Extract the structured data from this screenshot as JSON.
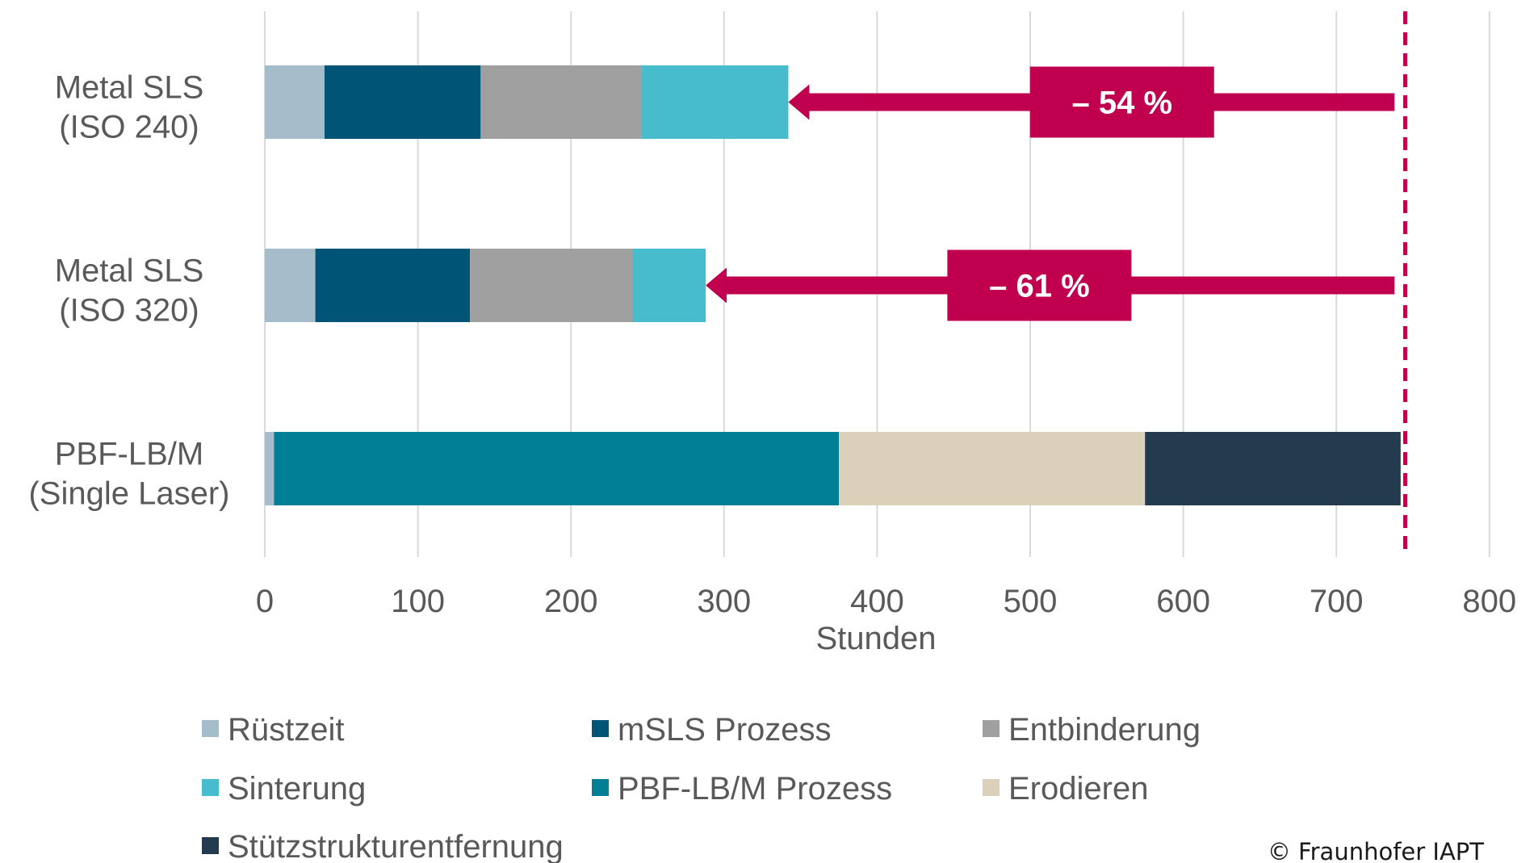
{
  "chart_data": {
    "type": "bar",
    "orientation": "horizontal",
    "stacked": true,
    "categories": [
      "Metal SLS\n(ISO 240)",
      "Metal SLS\n(ISO 320)",
      "PBF-LB/M\n(Single Laser)"
    ],
    "series": [
      {
        "name": "Rüstzeit",
        "color": "#A5BCCB",
        "values": [
          39,
          33,
          6
        ]
      },
      {
        "name": "mSLS Prozess",
        "color": "#005476",
        "values": [
          102,
          101,
          0
        ]
      },
      {
        "name": "Entbinderung",
        "color": "#A0A0A0",
        "values": [
          105,
          106,
          0
        ]
      },
      {
        "name": "Sinterung",
        "color": "#47BCCC",
        "values": [
          96,
          48,
          0
        ]
      },
      {
        "name": "PBF-LB/M Prozess",
        "color": "#007F95",
        "values": [
          0,
          0,
          369
        ]
      },
      {
        "name": "Erodieren",
        "color": "#DBD1BA",
        "values": [
          0,
          0,
          200
        ]
      },
      {
        "name": "Stützstrukturentfernung",
        "color": "#243A4F",
        "values": [
          0,
          0,
          167
        ]
      }
    ],
    "xlabel": "Stunden",
    "ylabel": "",
    "xlim": [
      0,
      800
    ],
    "xticks": [
      "0",
      "100",
      "200",
      "300",
      "400",
      "500",
      "600",
      "700",
      "800"
    ],
    "grid": true,
    "legend_position": "bottom",
    "reference_line": {
      "value": 745,
      "color": "#C0004E",
      "style": "dashed"
    },
    "annotations": [
      {
        "category_index": 0,
        "label": "– 54 %",
        "arrow_from": 738,
        "arrow_to": 342,
        "box_center": 560
      },
      {
        "category_index": 1,
        "label": "– 61 %",
        "arrow_from": 738,
        "arrow_to": 288,
        "box_center": 506
      }
    ]
  },
  "footer": {
    "copyright": "© Fraunhofer IAPT"
  }
}
